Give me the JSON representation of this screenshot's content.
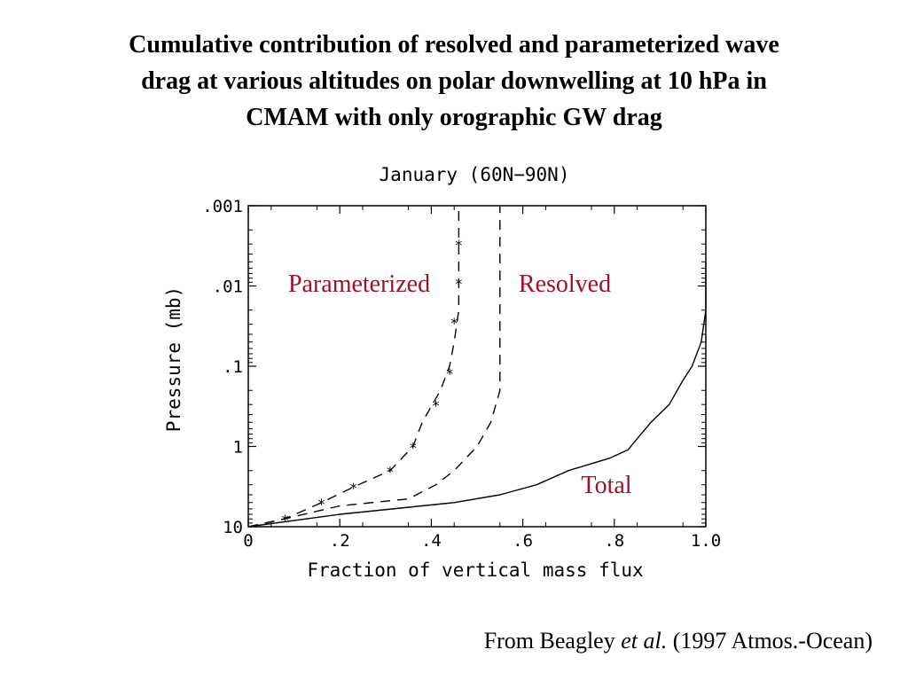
{
  "slide": {
    "title_lines": [
      "Cumulative contribution of resolved and parameterized wave",
      "drag at various altitudes on polar downwelling at 10 hPa in",
      "CMAM with only orographic GW drag"
    ],
    "credit_prefix": "From Beagley ",
    "credit_italic": "et al.",
    "credit_suffix": " (1997 Atmos.-Ocean)"
  },
  "colors": {
    "annotation": "#a0102a",
    "lines": "#000000"
  },
  "chart_data": {
    "type": "line",
    "title": "January (60N−90N)",
    "xlabel": "Fraction of vertical mass flux",
    "ylabel": "Pressure (mb)",
    "xlim": [
      0,
      1.0
    ],
    "ylim": [
      10,
      0.001
    ],
    "yscale": "log-reversed",
    "xticks": [
      {
        "value": 0,
        "label": "0"
      },
      {
        "value": 0.2,
        "label": ".2"
      },
      {
        "value": 0.4,
        "label": ".4"
      },
      {
        "value": 0.6,
        "label": ".6"
      },
      {
        "value": 0.8,
        "label": ".8"
      },
      {
        "value": 1.0,
        "label": "1.0"
      }
    ],
    "yticks": [
      {
        "value": 0.001,
        "label": ".001"
      },
      {
        "value": 0.01,
        "label": ".01"
      },
      {
        "value": 0.1,
        "label": ".1"
      },
      {
        "value": 1,
        "label": "1"
      },
      {
        "value": 10,
        "label": "10"
      }
    ],
    "grid": false,
    "series": [
      {
        "name": "Parameterized",
        "style": "dashed-asterisk",
        "points": [
          [
            0,
            10
          ],
          [
            0.08,
            8
          ],
          [
            0.16,
            5
          ],
          [
            0.23,
            3.2
          ],
          [
            0.31,
            2
          ],
          [
            0.36,
            1
          ],
          [
            0.38,
            0.5
          ],
          [
            0.42,
            0.2
          ],
          [
            0.44,
            0.1
          ],
          [
            0.45,
            0.05
          ],
          [
            0.46,
            0.02
          ],
          [
            0.46,
            0.01
          ],
          [
            0.46,
            0.005
          ],
          [
            0.46,
            0.002
          ],
          [
            0.46,
            0.001
          ]
        ],
        "markers": [
          [
            0.08,
            8
          ],
          [
            0.16,
            5
          ],
          [
            0.23,
            3.2
          ],
          [
            0.31,
            2
          ],
          [
            0.36,
            1
          ],
          [
            0.41,
            0.3
          ],
          [
            0.44,
            0.12
          ],
          [
            0.45,
            0.028
          ],
          [
            0.46,
            0.009
          ],
          [
            0.46,
            0.003
          ]
        ]
      },
      {
        "name": "Resolved",
        "style": "dashed",
        "points": [
          [
            0,
            10
          ],
          [
            0.1,
            7.5
          ],
          [
            0.2,
            5.5
          ],
          [
            0.35,
            4.5
          ],
          [
            0.41,
            3
          ],
          [
            0.45,
            2
          ],
          [
            0.5,
            1
          ],
          [
            0.53,
            0.5
          ],
          [
            0.55,
            0.2
          ],
          [
            0.55,
            0.1
          ],
          [
            0.55,
            0.05
          ],
          [
            0.55,
            0.01
          ],
          [
            0.55,
            0.001
          ]
        ]
      },
      {
        "name": "Total",
        "style": "solid",
        "points": [
          [
            0,
            10
          ],
          [
            0.2,
            7
          ],
          [
            0.45,
            5
          ],
          [
            0.55,
            4
          ],
          [
            0.63,
            3
          ],
          [
            0.7,
            2
          ],
          [
            0.79,
            1.4
          ],
          [
            0.83,
            1.1
          ],
          [
            0.85,
            0.8
          ],
          [
            0.88,
            0.5
          ],
          [
            0.92,
            0.3
          ],
          [
            0.95,
            0.15
          ],
          [
            0.97,
            0.1
          ],
          [
            0.99,
            0.05
          ],
          [
            1.0,
            0.02
          ],
          [
            1.0,
            0.005
          ]
        ]
      }
    ],
    "annotations": [
      {
        "text": "Parameterized",
        "series": "Parameterized"
      },
      {
        "text": "Resolved",
        "series": "Resolved"
      },
      {
        "text": "Total",
        "series": "Total"
      }
    ]
  }
}
